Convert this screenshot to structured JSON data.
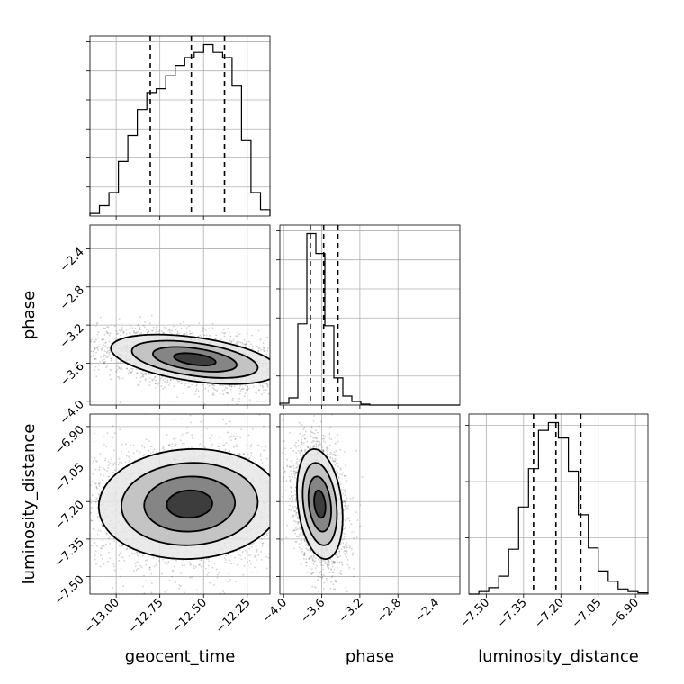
{
  "chart_data": {
    "type": "corner",
    "parameters": [
      {
        "key": "geocent_time",
        "label": "geocent_time",
        "range": [
          -13.15,
          -12.12
        ],
        "ticks": [
          -13.0,
          -12.75,
          -12.5,
          -12.25
        ],
        "tick_labels": [
          "−13.00",
          "−12.75",
          "−12.50",
          "−12.25"
        ],
        "quantiles": [
          -12.805,
          -12.57,
          -12.38
        ],
        "hist_counts": [
          2,
          8,
          18,
          42,
          62,
          82,
          95,
          98,
          108,
          116,
          122,
          126,
          132,
          126,
          122,
          100,
          58,
          18,
          5
        ]
      },
      {
        "key": "phase",
        "label": "phase",
        "range": [
          -4.04,
          -2.15
        ],
        "ticks": [
          -4.0,
          -3.6,
          -3.2,
          -2.8,
          -2.4
        ],
        "tick_labels": [
          "−4.0",
          "−3.6",
          "−3.2",
          "−2.8",
          "−2.4"
        ],
        "quantiles": [
          -3.72,
          -3.58,
          -3.43
        ],
        "hist_counts": [
          2,
          8,
          90,
          190,
          168,
          88,
          30,
          10,
          4,
          1,
          0,
          0,
          0,
          0,
          0,
          0,
          0,
          0,
          0,
          0
        ]
      },
      {
        "key": "luminosity_distance",
        "label": "luminosity_distance",
        "range": [
          -7.57,
          -6.85
        ],
        "ticks": [
          -7.5,
          -7.35,
          -7.2,
          -7.05,
          -6.9
        ],
        "tick_labels": [
          "−7.50",
          "−7.35",
          "−7.20",
          "−7.05",
          "−6.90"
        ],
        "quantiles": [
          -7.31,
          -7.22,
          -7.12
        ],
        "hist_counts": [
          0,
          2,
          5,
          14,
          35,
          68,
          98,
          128,
          134,
          122,
          96,
          62,
          36,
          18,
          10,
          4,
          2,
          1
        ]
      }
    ],
    "pairs": [
      {
        "x": "geocent_time",
        "y": "phase",
        "mean": [
          -12.55,
          -3.56
        ],
        "sd": [
          0.24,
          0.13
        ],
        "rho": -0.45,
        "n_scatter": 3500
      },
      {
        "x": "geocent_time",
        "y": "luminosity_distance",
        "mean": [
          -12.58,
          -7.21
        ],
        "sd": [
          0.26,
          0.11
        ],
        "rho": 0.05,
        "n_scatter": 3500
      },
      {
        "x": "phase",
        "y": "luminosity_distance",
        "mean": [
          -3.62,
          -7.21
        ],
        "sd": [
          0.12,
          0.11
        ],
        "rho": -0.25,
        "n_scatter": 2500
      }
    ],
    "diag_hist_ticks": {
      "geocent_time": 6,
      "phase": 6,
      "luminosity_distance": 3
    },
    "contour_levels_sigma": [
      0.5,
      1.0,
      1.5,
      2.0
    ],
    "colors": {
      "line": "#000000",
      "grid": "#b0b0b0"
    },
    "grid": true
  }
}
